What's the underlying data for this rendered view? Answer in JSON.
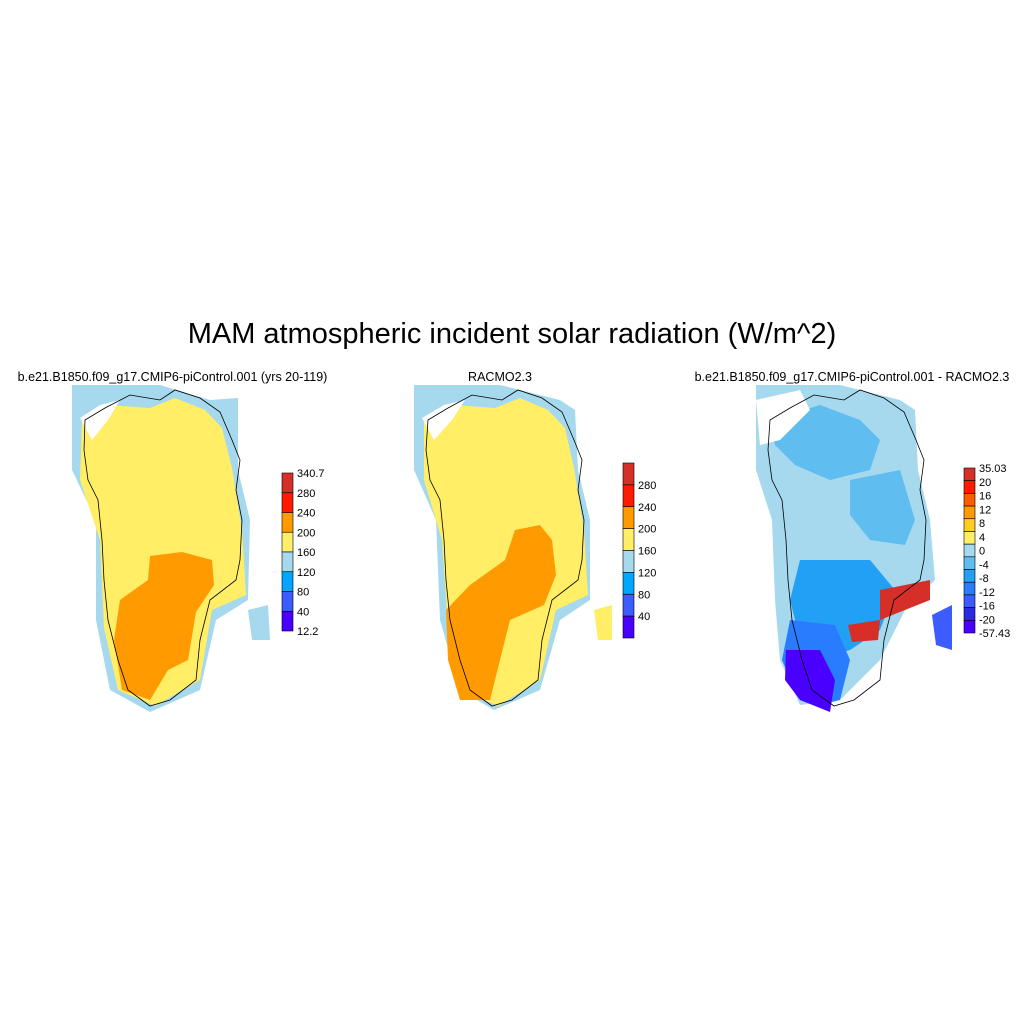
{
  "title": "MAM atmospheric incident solar radiation (W/m^2)",
  "panels": [
    {
      "title": "b.e21.B1850.f09_g17.CMIP6-piControl.001 (yrs 20-119)",
      "colorbar": {
        "labels": [
          "340.7",
          "280",
          "240",
          "200",
          "160",
          "120",
          "80",
          "40",
          "12.2"
        ],
        "colors": [
          "#d62f27",
          "#ff1a00",
          "#ff9a00",
          "#ffee66",
          "#a6d8ee",
          "#00a6ff",
          "#3d5cff",
          "#4a00ff"
        ]
      }
    },
    {
      "title": "RACMO2.3",
      "colorbar": {
        "labels": [
          "280",
          "240",
          "200",
          "160",
          "120",
          "80",
          "40"
        ],
        "colors": [
          "#d62f27",
          "#ff1a00",
          "#ff9a00",
          "#ffee66",
          "#a6d8ee",
          "#00a6ff",
          "#3d5cff",
          "#4a00ff"
        ]
      }
    },
    {
      "title": "b.e21.B1850.f09_g17.CMIP6-piControl.001 - RACMO2.3",
      "colorbar": {
        "labels": [
          "35.03",
          "20",
          "16",
          "12",
          "8",
          "4",
          "0",
          "-4",
          "-8",
          "-12",
          "-16",
          "-20",
          "-57.43"
        ],
        "colors": [
          "#d62f27",
          "#ff1a00",
          "#ff5c00",
          "#ff9a00",
          "#ffcc22",
          "#ffee66",
          "#a6d8ee",
          "#5fbdf0",
          "#22a0f5",
          "#2a7cff",
          "#3d5cff",
          "#2a2ae6",
          "#4a00ff"
        ]
      }
    }
  ]
}
